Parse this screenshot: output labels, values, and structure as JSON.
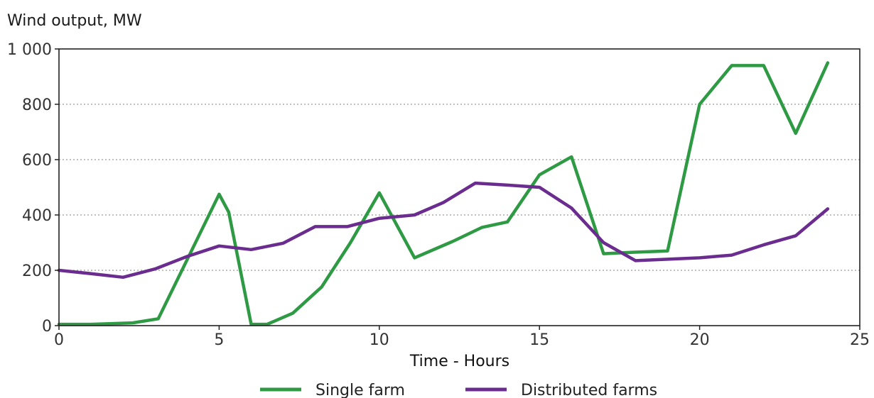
{
  "chart_data": {
    "type": "line",
    "ylabel": "Wind output, MW",
    "xlabel": "Time - Hours",
    "xlim": [
      0,
      25
    ],
    "ylim": [
      0,
      1000
    ],
    "x_ticks": [
      0,
      5,
      10,
      15,
      20,
      25
    ],
    "x_tick_labels": [
      "0",
      "5",
      "10",
      "15",
      "20",
      "25"
    ],
    "y_ticks": [
      0,
      200,
      400,
      600,
      800,
      1000
    ],
    "y_tick_labels": [
      "0",
      "200",
      "400",
      "600",
      "800",
      "1 000"
    ],
    "grid": "horizontal dotted",
    "legend_position": "bottom",
    "series": [
      {
        "name": "Single farm",
        "color": "#2e9a44",
        "x": [
          0,
          1,
          2.3,
          3.1,
          5,
          5.3,
          6,
          6.5,
          7.3,
          8.2,
          9.1,
          10,
          11.1,
          12.3,
          13.2,
          14,
          15,
          16,
          17,
          17.9,
          19,
          20,
          21,
          22,
          23,
          24
        ],
        "y": [
          5,
          5,
          10,
          25,
          475,
          410,
          5,
          5,
          45,
          140,
          300,
          480,
          245,
          305,
          355,
          375,
          545,
          610,
          260,
          265,
          270,
          800,
          940,
          940,
          695,
          950
        ]
      },
      {
        "name": "Distributed farms",
        "color": "#6b2c8f",
        "x": [
          0,
          1,
          2,
          3,
          4,
          5,
          6,
          7,
          8,
          9,
          10,
          11.1,
          12,
          13,
          14,
          15,
          16,
          17,
          18,
          19,
          20,
          21,
          22,
          23,
          24
        ],
        "y": [
          200,
          188,
          175,
          205,
          250,
          288,
          275,
          298,
          358,
          358,
          388,
          400,
          445,
          515,
          508,
          500,
          425,
          300,
          235,
          240,
          245,
          255,
          292,
          325,
          422
        ]
      }
    ]
  }
}
